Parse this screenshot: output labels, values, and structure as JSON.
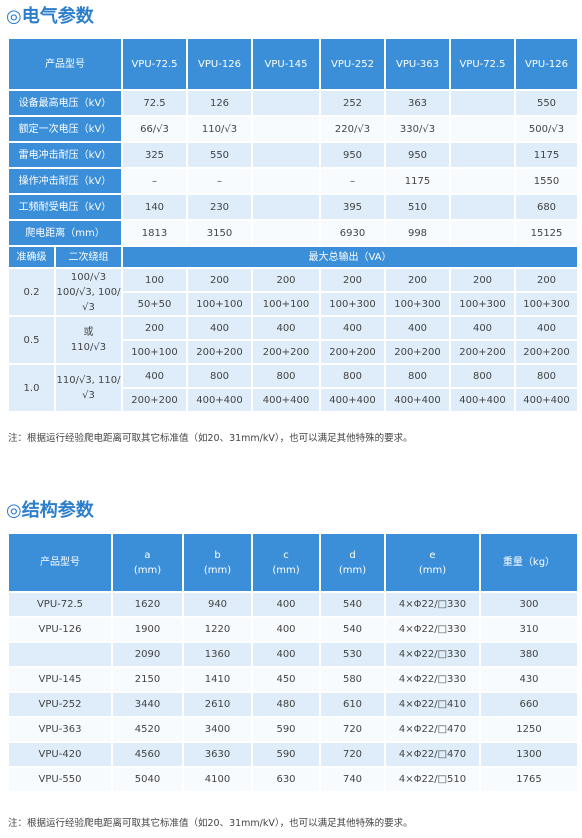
{
  "electrical": {
    "title": "◎电气参数",
    "header": [
      "产品型号",
      "VPU-72.5",
      "VPU-126",
      "VPU-145",
      "VPU-252",
      "VPU-363",
      "VPU-72.5",
      "VPU-126"
    ],
    "rows": [
      [
        "设备最高电压（kV）",
        "72.5",
        "126",
        null,
        "252",
        "363",
        null,
        "550"
      ],
      [
        "额定一次电压（kV）",
        "66/√3",
        "110/√3",
        null,
        "220/√3",
        "330/√3",
        null,
        "500/√3"
      ],
      [
        "雷电冲击耐压（kV）",
        "325",
        "550",
        null,
        "950",
        "950",
        null,
        "1175"
      ],
      [
        "操作冲击耐压（kV）",
        "–",
        "–",
        null,
        "–",
        "1175",
        null,
        "1550"
      ],
      [
        "工频耐受电压（kV）",
        "140",
        "230",
        null,
        "395",
        "510",
        null,
        "680"
      ],
      [
        "爬电距离（mm）",
        "1813",
        "3150",
        null,
        "6930",
        "998",
        null,
        "15125"
      ]
    ],
    "output_header": [
      "准确级",
      "二次绕组",
      "最大总输出（VA）"
    ],
    "output_groups": [
      {
        "class": "0.2",
        "winding": [
          "100/√3",
          "100/√3, 100/√3"
        ],
        "rows": [
          [
            "100",
            "200",
            "200",
            "200",
            "200",
            "200",
            "200"
          ],
          [
            "50+50",
            "100+100",
            "100+100",
            "100+300",
            "100+300",
            "100+300",
            "100+300"
          ]
        ]
      },
      {
        "class": "0.5",
        "winding": [
          "或",
          "110/√3"
        ],
        "rows": [
          [
            "200",
            "400",
            "400",
            "400",
            "400",
            "400",
            "400"
          ],
          [
            "100+100",
            "200+200",
            "200+200",
            "200+200",
            "200+200",
            "200+200",
            "200+200"
          ]
        ]
      },
      {
        "class": "1.0",
        "winding": [
          "110/√3, 110/√3"
        ],
        "rows": [
          [
            "400",
            "800",
            "800",
            "800",
            "800",
            "800",
            "800"
          ],
          [
            "200+200",
            "400+400",
            "400+400",
            "400+400",
            "400+400",
            "400+400",
            "400+400"
          ]
        ]
      }
    ],
    "note": "注：根据运行经验爬电距离可取其它标准值（如20、31mm/kV），也可以满足其他特殊的要求。"
  },
  "structure": {
    "title": "◎结构参数",
    "header": [
      [
        "产品型号"
      ],
      [
        "a",
        "(mm)"
      ],
      [
        "b",
        "(mm)"
      ],
      [
        "c",
        "(mm)"
      ],
      [
        "d",
        "(mm)"
      ],
      [
        "e",
        "(mm)"
      ],
      [
        "重量（kg）"
      ]
    ],
    "rows": [
      [
        "VPU-72.5",
        "1620",
        "940",
        "400",
        "540",
        "4×Φ22/□330",
        "300"
      ],
      [
        "VPU-126",
        "1900",
        "1220",
        "400",
        "540",
        "4×Φ22/□330",
        "310"
      ],
      [
        null,
        "2090",
        "1360",
        "400",
        "530",
        "4×Φ22/□330",
        "380"
      ],
      [
        "VPU-145",
        "2150",
        "1410",
        "450",
        "580",
        "4×Φ22/□330",
        "430"
      ],
      [
        "VPU-252",
        "3440",
        "2610",
        "480",
        "610",
        "4×Φ22/□410",
        "660"
      ],
      [
        "VPU-363",
        "4520",
        "3400",
        "590",
        "720",
        "4×Φ22/□470",
        "1250"
      ],
      [
        "VPU-420",
        "4560",
        "3630",
        "590",
        "720",
        "4×Φ22/□470",
        "1300"
      ],
      [
        "VPU-550",
        "5040",
        "4100",
        "630",
        "740",
        "4×Φ22/□510",
        "1765"
      ]
    ],
    "note": "注：根据运行经验爬电距离可取其它标准值（如20、31mm/kV），也可以满足其他特殊的要求。"
  }
}
